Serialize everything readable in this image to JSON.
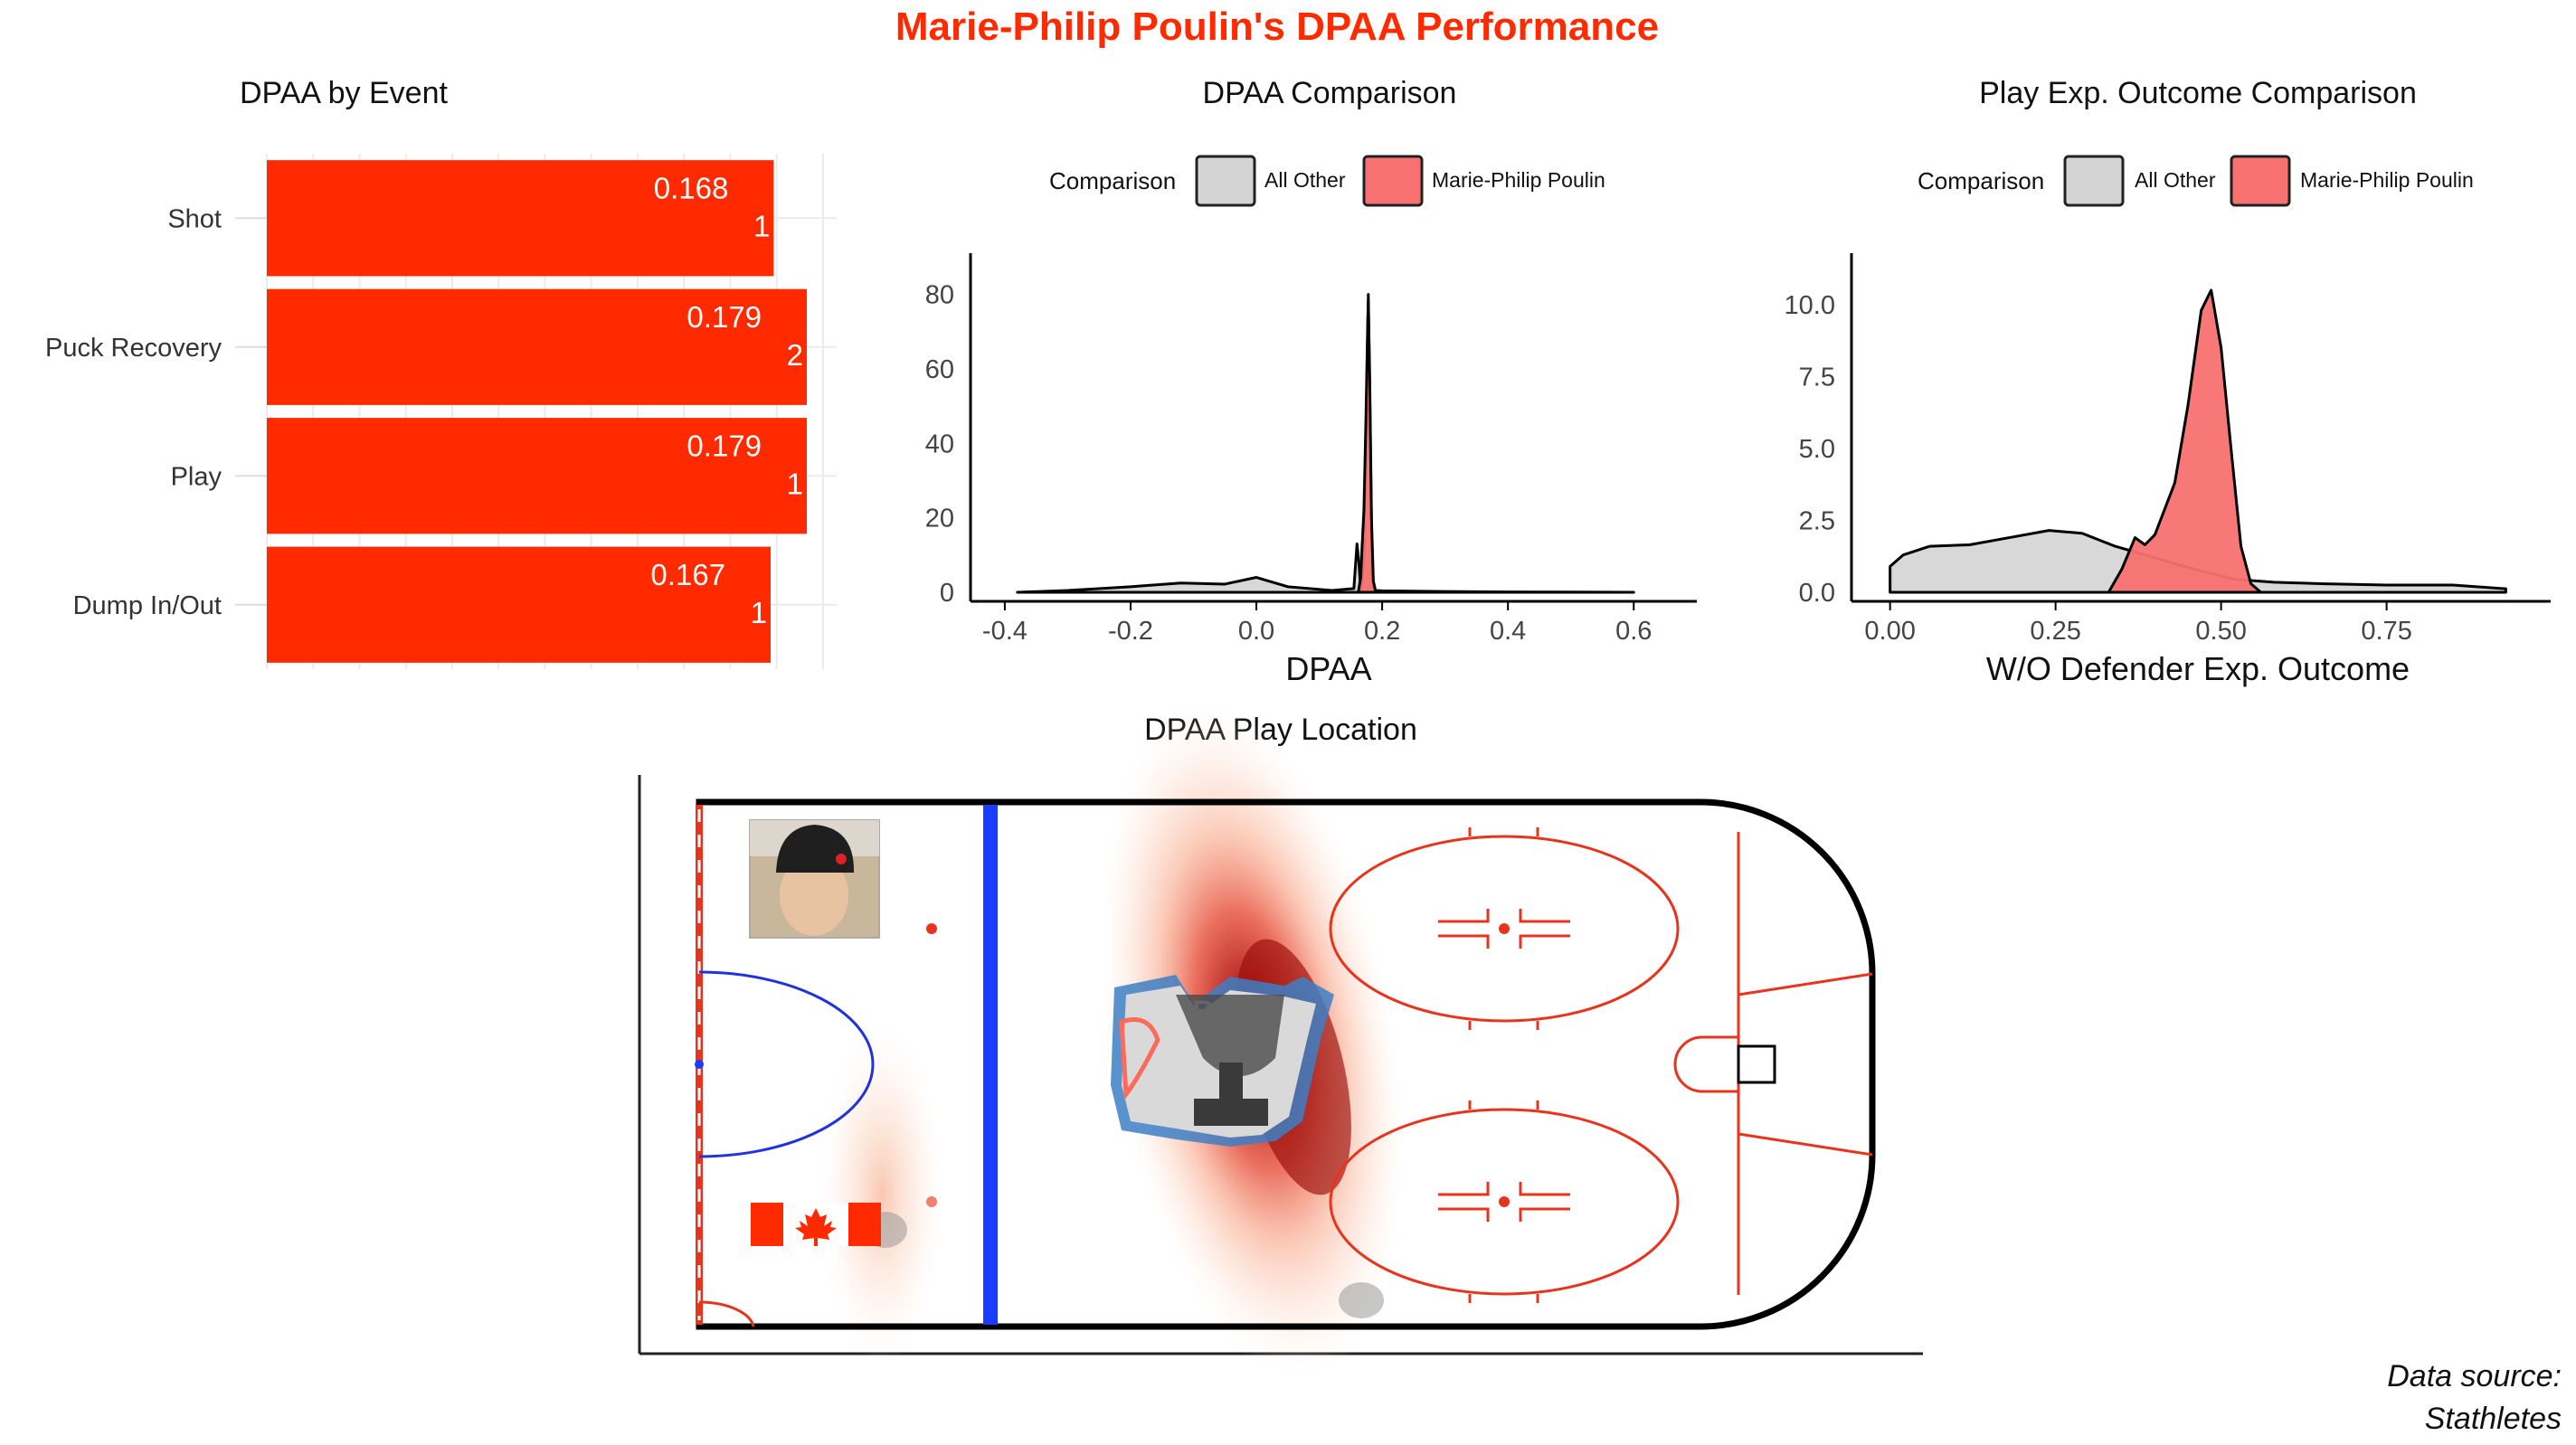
{
  "title": "Marie-Philip Poulin's DPAA Performance",
  "caption": {
    "line1": "Data source:",
    "line2": "Stathletes"
  },
  "colors": {
    "accent": "#ff2a00",
    "pink": "#f87171",
    "grey": "#d4d4d4",
    "blue_line": "#1a3cff",
    "rink_red": "#e8341c",
    "circle_blue": "#2233dd"
  },
  "chart_data": [
    {
      "type": "bar",
      "title": "DPAA by Event",
      "orientation": "horizontal",
      "categories": [
        "Shot",
        "Puck Recovery",
        "Play",
        "Dump In/Out"
      ],
      "values": [
        0.168,
        0.179,
        0.179,
        0.167
      ],
      "counts": [
        1,
        2,
        1,
        1
      ],
      "value_labels": [
        "0.168",
        "0.179",
        "0.179",
        "0.167"
      ],
      "count_labels": [
        "1",
        "2",
        "1",
        "1"
      ],
      "xlim": [
        0,
        0.179
      ],
      "grid": true
    },
    {
      "type": "area",
      "title": "DPAA Comparison",
      "xlabel": "DPAA",
      "ylabel": "",
      "xlim": [
        -0.42,
        0.65
      ],
      "ylim": [
        0,
        85
      ],
      "xticks": [
        -0.4,
        -0.2,
        0.0,
        0.2,
        0.4,
        0.6
      ],
      "xtick_labels": [
        "-0.4",
        "-0.2",
        "0.0",
        "0.2",
        "0.4",
        "0.6"
      ],
      "yticks": [
        0,
        20,
        40,
        60,
        80
      ],
      "ytick_labels": [
        "0",
        "20",
        "40",
        "60",
        "80"
      ],
      "legend": {
        "title": "Comparison",
        "entries": [
          "All Other",
          "Marie-Philip Poulin"
        ],
        "position": "top"
      },
      "series": [
        {
          "name": "All Other",
          "x": [
            -0.38,
            -0.3,
            -0.2,
            -0.12,
            -0.05,
            0.0,
            0.05,
            0.12,
            0.155,
            0.16,
            0.163,
            0.166,
            0.168,
            0.171,
            0.174,
            0.178,
            0.181,
            0.184,
            0.186,
            0.2,
            0.3,
            0.4,
            0.5,
            0.6
          ],
          "y": [
            0,
            0.5,
            1.5,
            2.5,
            2.2,
            4,
            1.5,
            0.5,
            1,
            13,
            8,
            0.5,
            3,
            10,
            40,
            80,
            45,
            5,
            0.5,
            0.4,
            0.2,
            0.1,
            0.05,
            0
          ]
        },
        {
          "name": "Marie-Philip Poulin",
          "x": [
            0.162,
            0.166,
            0.168,
            0.171,
            0.174,
            0.177,
            0.178,
            0.18,
            0.183,
            0.186,
            0.19
          ],
          "y": [
            0,
            4,
            12,
            22,
            45,
            72,
            78,
            60,
            20,
            3,
            0
          ]
        }
      ]
    },
    {
      "type": "area",
      "title": "Play Exp. Outcome Comparison",
      "xlabel": "W/O Defender Exp. Outcome",
      "ylabel": "",
      "xlim": [
        -0.02,
        0.95
      ],
      "ylim": [
        0,
        11
      ],
      "xticks": [
        0.0,
        0.25,
        0.5,
        0.75
      ],
      "xtick_labels": [
        "0.00",
        "0.25",
        "0.50",
        "0.75"
      ],
      "yticks": [
        0,
        2.5,
        5,
        7.5,
        10
      ],
      "ytick_labels": [
        "0.0",
        "2.5",
        "5.0",
        "7.5",
        "10.0"
      ],
      "legend": {
        "title": "Comparison",
        "entries": [
          "All Other",
          "Marie-Philip Poulin"
        ],
        "position": "top"
      },
      "series": [
        {
          "name": "All Other",
          "x": [
            0.0,
            0.02,
            0.06,
            0.12,
            0.18,
            0.24,
            0.29,
            0.34,
            0.4,
            0.46,
            0.52,
            0.58,
            0.65,
            0.75,
            0.85,
            0.93
          ],
          "y": [
            0.9,
            1.3,
            1.6,
            1.65,
            1.9,
            2.15,
            2.05,
            1.6,
            1.2,
            0.8,
            0.45,
            0.35,
            0.3,
            0.25,
            0.25,
            0.12
          ]
        },
        {
          "name": "Marie-Philip Poulin",
          "x": [
            0.33,
            0.35,
            0.37,
            0.385,
            0.4,
            0.43,
            0.45,
            0.47,
            0.485,
            0.5,
            0.515,
            0.53,
            0.545,
            0.56
          ],
          "y": [
            0,
            0.8,
            1.9,
            1.65,
            2.0,
            3.8,
            6.5,
            9.8,
            10.5,
            8.5,
            5.0,
            1.6,
            0.3,
            0
          ]
        }
      ]
    },
    {
      "type": "heatmap",
      "title": "DPAA Play Location",
      "description_layer": "density of play locations on a half rink",
      "points": [
        {
          "x": 150,
          "y": 40,
          "label": "hotspot"
        },
        {
          "x": 215,
          "y": 42,
          "label": "hotspot"
        },
        {
          "x": 230,
          "y": 10,
          "label": "hotspot"
        },
        {
          "x": 75,
          "y": 20,
          "label": "hotspot"
        }
      ]
    }
  ]
}
